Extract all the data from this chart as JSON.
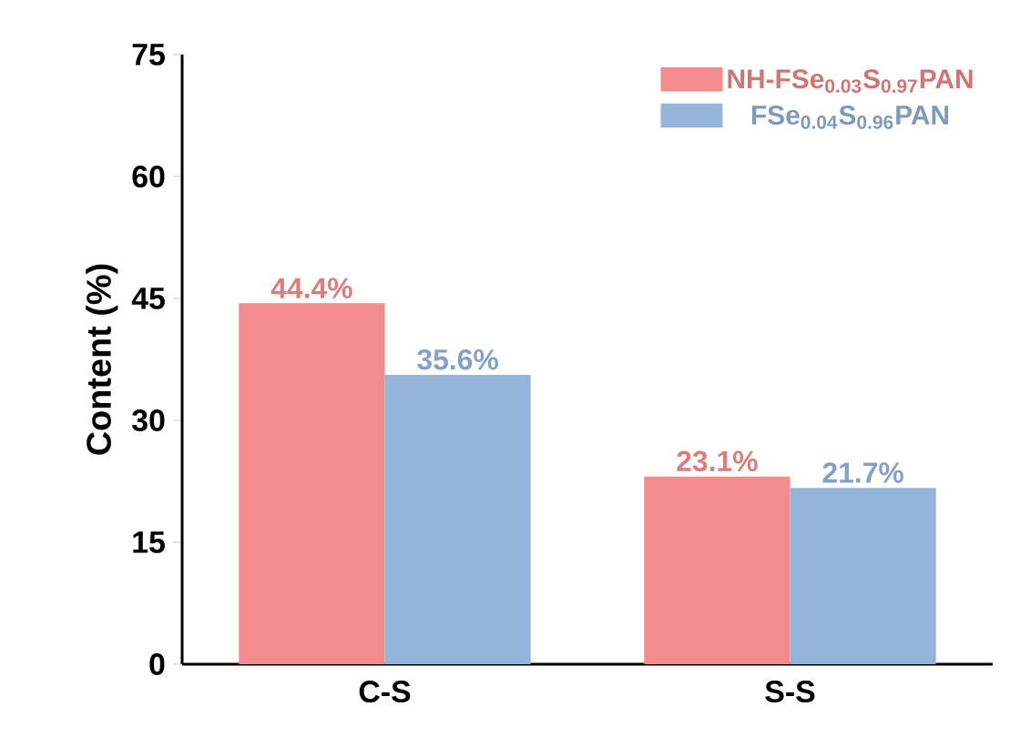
{
  "chart_data": {
    "type": "bar",
    "ylabel": "Content (%)",
    "categories": [
      "C-S",
      "S-S"
    ],
    "series": [
      {
        "name": "NH-FSe$_{0.03}$S$_{0.97}$PAN",
        "color": "#f28b8b",
        "values": [
          44.4,
          23.1
        ],
        "value_labels": [
          "44.4%",
          "23.1%"
        ]
      },
      {
        "name": "FSe$_{0.04}$S$_{0.96}$PAN",
        "color": "#94b4da",
        "values": [
          35.6,
          21.7
        ],
        "value_labels": [
          "35.6%",
          "21.7%"
        ]
      }
    ],
    "ylim": [
      0,
      75
    ],
    "yticks": [
      0,
      15,
      30,
      45,
      60,
      75
    ],
    "grid": false,
    "legend": "top right"
  }
}
